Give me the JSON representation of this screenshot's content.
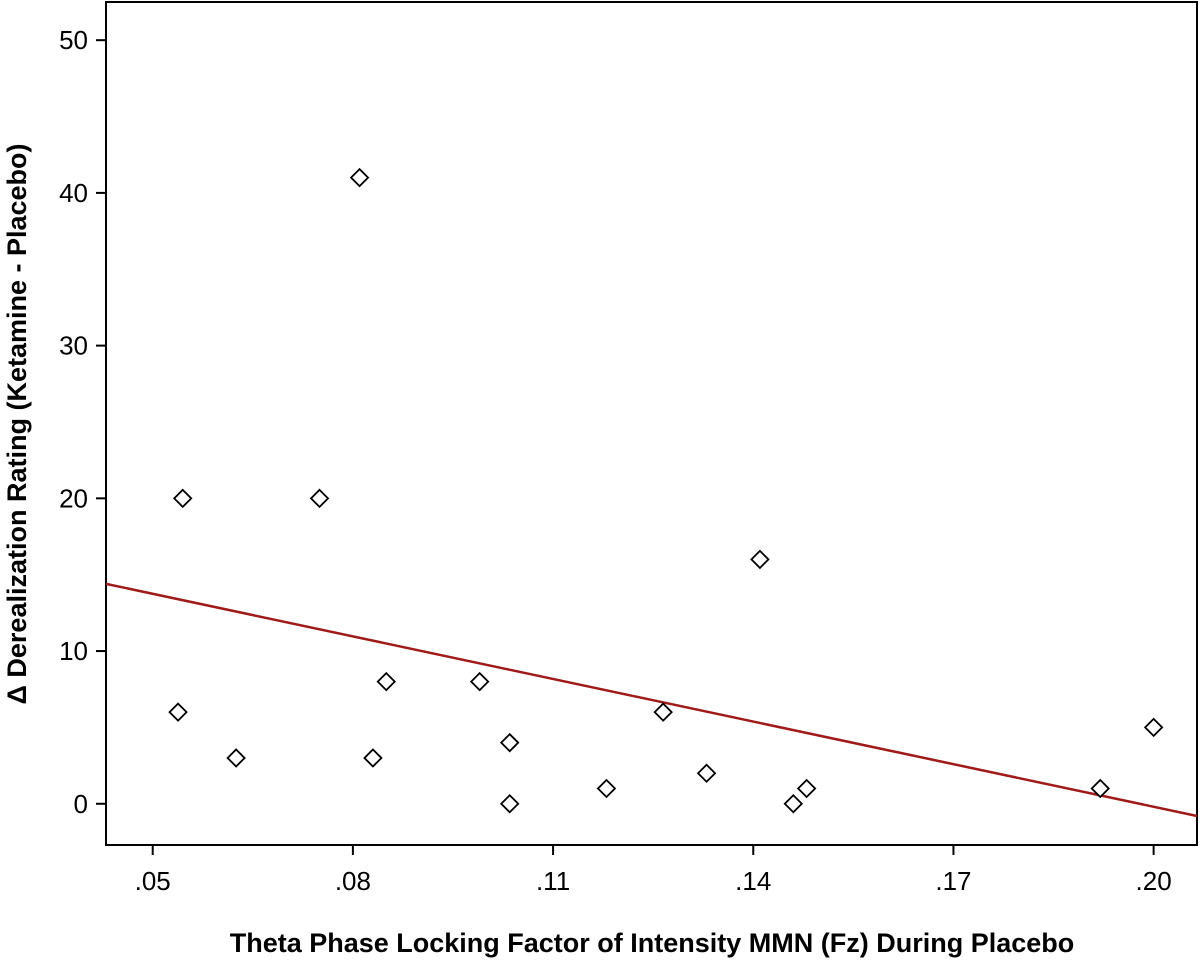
{
  "chart_data": {
    "type": "scatter",
    "title": "",
    "xlabel": "Theta Phase Locking Factor of Intensity MMN (Fz) During Placebo",
    "ylabel": "Δ Derealization Rating (Ketamine - Placebo)",
    "xlim": [
      0.043,
      0.2065
    ],
    "ylim": [
      -2.7,
      52.5
    ],
    "x_ticks": [
      0.05,
      0.08,
      0.11,
      0.14,
      0.17,
      0.2
    ],
    "x_tick_labels": [
      ".05",
      ".08",
      ".11",
      ".14",
      ".17",
      ".20"
    ],
    "y_ticks": [
      0,
      10,
      20,
      30,
      40,
      50
    ],
    "y_tick_labels": [
      "0",
      "10",
      "20",
      "30",
      "40",
      "50"
    ],
    "grid": false,
    "marker": "open-diamond",
    "marker_color": "#000000",
    "series": [
      {
        "points": [
          {
            "x": 0.0545,
            "y": 20
          },
          {
            "x": 0.0538,
            "y": 6
          },
          {
            "x": 0.0625,
            "y": 3
          },
          {
            "x": 0.075,
            "y": 20
          },
          {
            "x": 0.081,
            "y": 41
          },
          {
            "x": 0.083,
            "y": 3
          },
          {
            "x": 0.085,
            "y": 8
          },
          {
            "x": 0.099,
            "y": 8
          },
          {
            "x": 0.1035,
            "y": 4
          },
          {
            "x": 0.1035,
            "y": 0
          },
          {
            "x": 0.118,
            "y": 1
          },
          {
            "x": 0.1265,
            "y": 6
          },
          {
            "x": 0.133,
            "y": 2
          },
          {
            "x": 0.141,
            "y": 16
          },
          {
            "x": 0.146,
            "y": 0
          },
          {
            "x": 0.148,
            "y": 1
          },
          {
            "x": 0.192,
            "y": 1
          },
          {
            "x": 0.2,
            "y": 5
          }
        ]
      }
    ],
    "fit_line": {
      "type": "linear",
      "color": "#a01a1a",
      "points": [
        {
          "x": 0.043,
          "y": 14.4
        },
        {
          "x": 0.2065,
          "y": -0.8
        }
      ]
    }
  }
}
